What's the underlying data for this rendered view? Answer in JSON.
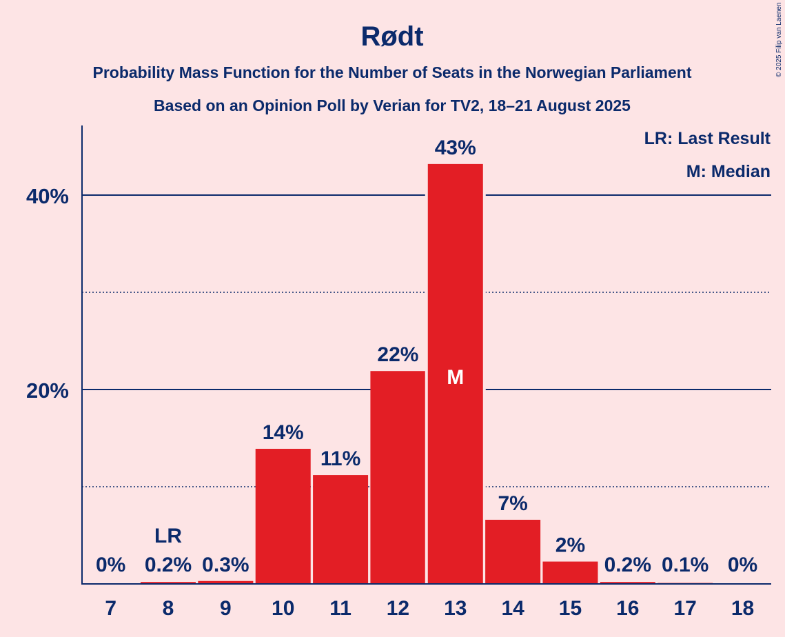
{
  "chart_data": {
    "type": "bar",
    "title": "Rødt",
    "subtitle": "Probability Mass Function for the Number of Seats in the Norwegian Parliament",
    "subtitle2": "Based on an Opinion Poll by Verian for TV2, 18–21 August 2025",
    "copyright": "© 2025 Filip van Laenen",
    "categories": [
      "7",
      "8",
      "9",
      "10",
      "11",
      "12",
      "13",
      "14",
      "15",
      "16",
      "17",
      "18"
    ],
    "values": [
      0,
      0.2,
      0.3,
      13.9,
      11.2,
      21.9,
      43.2,
      6.6,
      2.3,
      0.2,
      0.1,
      0
    ],
    "value_labels": [
      "0%",
      "0.2%",
      "0.3%",
      "14%",
      "11%",
      "22%",
      "43%",
      "7%",
      "2%",
      "0.2%",
      "0.1%",
      "0%"
    ],
    "ylim": [
      0,
      47
    ],
    "yticks": [
      {
        "value": 20,
        "label": "20%"
      },
      {
        "value": 40,
        "label": "40%"
      }
    ],
    "minor_gridlines": [
      10,
      30
    ],
    "last_result": {
      "category": "8",
      "marker": "LR"
    },
    "median": {
      "category": "13",
      "marker": "M"
    },
    "legend": [
      "LR: Last Result",
      "M: Median"
    ],
    "legend_position": "top-right",
    "colors": {
      "bar": "#e31e25",
      "text": "#0b2a6b",
      "background": "#fde4e5"
    }
  }
}
